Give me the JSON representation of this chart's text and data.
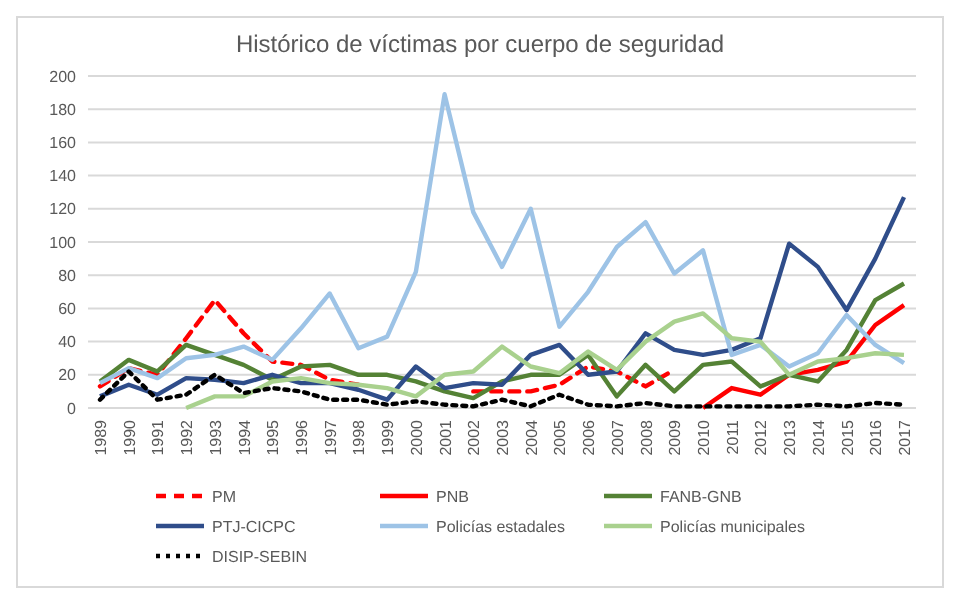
{
  "chart_data": {
    "type": "line",
    "title": "Histórico de víctimas por cuerpo de seguridad",
    "categories": [
      "1989",
      "1990",
      "1991",
      "1992",
      "1993",
      "1994",
      "1995",
      "1996",
      "1997",
      "1998",
      "1999",
      "2000",
      "2001",
      "2002",
      "2003",
      "2004",
      "2005",
      "2006",
      "2007",
      "2008",
      "2009",
      "2010",
      "2011",
      "2012",
      "2013",
      "2014",
      "2015",
      "2016",
      "2017"
    ],
    "series": [
      {
        "name": "PM",
        "color": "#ff0000",
        "line_style": "dashed",
        "values": [
          13,
          24,
          20,
          42,
          65,
          45,
          28,
          26,
          17,
          14,
          null,
          null,
          null,
          10,
          10,
          10,
          14,
          25,
          22,
          13,
          23,
          null,
          null,
          null,
          null,
          null,
          null,
          null,
          null
        ]
      },
      {
        "name": "PNB",
        "color": "#ff0000",
        "values": [
          null,
          null,
          null,
          null,
          null,
          null,
          null,
          null,
          null,
          null,
          null,
          null,
          null,
          null,
          null,
          null,
          null,
          null,
          null,
          null,
          null,
          0,
          12,
          8,
          20,
          23,
          28,
          50,
          62
        ]
      },
      {
        "name": "FANB-GNB",
        "color": "#548235",
        "values": [
          16,
          29,
          22,
          38,
          32,
          26,
          17,
          25,
          26,
          20,
          20,
          16,
          10,
          6,
          16,
          20,
          20,
          32,
          7,
          26,
          10,
          26,
          28,
          13,
          20,
          16,
          35,
          65,
          75
        ]
      },
      {
        "name": "PTJ-CICPC",
        "color": "#2f4d8a",
        "values": [
          7,
          14,
          8,
          18,
          17,
          15,
          20,
          15,
          15,
          11,
          5,
          25,
          12,
          15,
          14,
          32,
          38,
          20,
          22,
          45,
          35,
          32,
          35,
          42,
          99,
          85,
          59,
          90,
          127
        ]
      },
      {
        "name": "Policías estadales",
        "color": "#9dc3e6",
        "values": [
          15,
          24,
          18,
          30,
          32,
          37,
          29,
          48,
          69,
          36,
          43,
          82,
          189,
          118,
          85,
          120,
          49,
          70,
          97,
          112,
          81,
          95,
          32,
          38,
          25,
          33,
          56,
          38,
          27
        ]
      },
      {
        "name": "Policías municipales",
        "color": "#a9d18e",
        "values": [
          null,
          null,
          null,
          0,
          7,
          7,
          16,
          18,
          15,
          14,
          12,
          7,
          20,
          22,
          37,
          25,
          21,
          34,
          23,
          40,
          52,
          57,
          42,
          40,
          20,
          28,
          30,
          33,
          32
        ]
      },
      {
        "name": "DISIP-SEBIN",
        "color": "#000000",
        "line_style": "dotted",
        "values": [
          5,
          22,
          5,
          8,
          20,
          9,
          12,
          10,
          5,
          5,
          2,
          4,
          2,
          1,
          5,
          1,
          8,
          2,
          1,
          3,
          1,
          1,
          1,
          1,
          1,
          2,
          1,
          3,
          2
        ]
      }
    ],
    "ylim": [
      0,
      200
    ],
    "yticks": [
      0,
      20,
      40,
      60,
      80,
      100,
      120,
      140,
      160,
      180,
      200
    ],
    "grid": "y",
    "legend": "bottom"
  }
}
